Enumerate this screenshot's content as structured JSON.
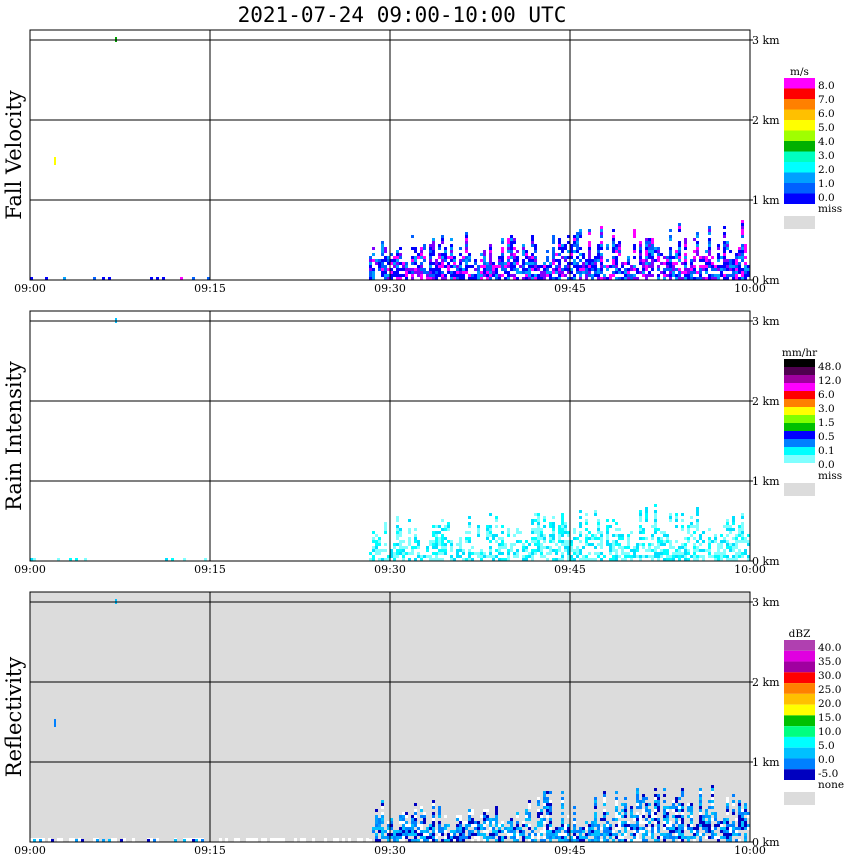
{
  "title": "2021-07-24   09:00-10:00 UTC",
  "chart_data": [
    {
      "type": "heatmap",
      "ylabel": "Fall Velocity",
      "x_ticks": [
        "09:00",
        "09:15",
        "09:30",
        "09:45",
        "10:00"
      ],
      "y_ticks": [
        "3 km",
        "2 km",
        "1 km",
        "0 km"
      ],
      "xlim": [
        "09:00",
        "10:00"
      ],
      "ylim_km": [
        0,
        3.1
      ],
      "grid": true,
      "missing_background": false,
      "colorbar": {
        "unit": "m/s",
        "bands": [
          "#ff00ff",
          "#ff0000",
          "#ff8000",
          "#ffc000",
          "#ffff00",
          "#a0ff00",
          "#00b000",
          "#00ffc0",
          "#00ffff",
          "#00a0ff",
          "#0060ff",
          "#0000ff"
        ],
        "labels": [
          "8.0",
          "7.0",
          "6.0",
          "5.0",
          "4.0",
          "3.0",
          "2.0",
          "1.0",
          "0.0"
        ],
        "miss_label": "miss",
        "miss_color": "#dcdcdc"
      }
    },
    {
      "type": "heatmap",
      "ylabel": "Rain Intensity",
      "x_ticks": [
        "09:00",
        "09:15",
        "09:30",
        "09:45",
        "10:00"
      ],
      "y_ticks": [
        "3 km",
        "2 km",
        "1 km",
        "0 km"
      ],
      "xlim": [
        "09:00",
        "10:00"
      ],
      "ylim_km": [
        0,
        3.1
      ],
      "grid": true,
      "missing_background": false,
      "colorbar": {
        "unit": "mm/hr",
        "bands": [
          "#000000",
          "#500050",
          "#a000a0",
          "#ff00ff",
          "#ff0000",
          "#ff8000",
          "#ffff00",
          "#80ff00",
          "#00c000",
          "#0000ff",
          "#0080ff",
          "#00ffff",
          "#80ffff",
          "#ffffff"
        ],
        "labels": [
          "48.0",
          "12.0",
          "6.0",
          "3.0",
          "1.5",
          "0.5",
          "0.1",
          "0.0"
        ],
        "miss_label": "miss",
        "miss_color": "#dcdcdc"
      }
    },
    {
      "type": "heatmap",
      "ylabel": "Reflectivity",
      "x_ticks": [
        "09:00",
        "09:15",
        "09:30",
        "09:45",
        "10:00"
      ],
      "y_ticks": [
        "3 km",
        "2 km",
        "1 km",
        "0 km"
      ],
      "xlim": [
        "09:00",
        "10:00"
      ],
      "ylim_km": [
        0,
        3.1
      ],
      "grid": true,
      "missing_background": true,
      "colorbar": {
        "unit": "dBZ",
        "bands": [
          "#b040b0",
          "#e000e0",
          "#a000a0",
          "#ff0000",
          "#ff8000",
          "#ffc000",
          "#ffff00",
          "#00c000",
          "#00ff80",
          "#00ffff",
          "#00c0ff",
          "#0080ff",
          "#0000c0"
        ],
        "labels": [
          "40.0",
          "35.0",
          "30.0",
          "25.0",
          "20.0",
          "15.0",
          "10.0",
          "5.0",
          "0.0",
          "-5.0"
        ],
        "miss_label": "none",
        "miss_color": "#dcdcdc"
      }
    }
  ]
}
